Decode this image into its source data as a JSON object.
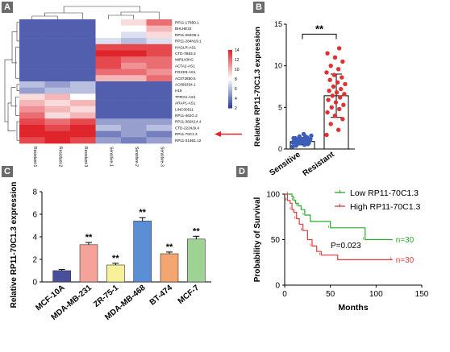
{
  "panels": {
    "a": "A",
    "b": "B",
    "c": "C",
    "d": "D"
  },
  "chart_data": [
    {
      "type": "heatmap",
      "panel": "A",
      "columns": [
        "Resistant-1",
        "Resistant-2",
        "Resistant-3",
        "Sensitive-1",
        "Sensitive-2",
        "Sensitive-3"
      ],
      "rows": [
        "RP11-175B0.1",
        "BHLHE22",
        "RP11-284O6.1",
        "RP11-284N19.1",
        "HAGLR-AS1",
        "CTD-7B53.3",
        "MIR143HG",
        "ACTA2-AS1",
        "FOXD3-AS1",
        "AC073850.5",
        "AC099334.1",
        "H19",
        "TPRG1-AS1",
        "ARAP1-AS1",
        "LINC00511",
        "RP11-462G.2",
        "RP11-382K14.4",
        "CTD-2224J9.4",
        "RP11-70C1.3",
        "RP11-314B1.12"
      ],
      "colorbar": {
        "ticks": [
          14,
          12,
          10,
          8,
          6,
          4,
          2
        ],
        "low": "#2e3f9e",
        "mid": "#ffffff",
        "high": "#e0242b"
      },
      "highlighted_row": "RP11-70C1.3",
      "values": [
        [
          3,
          3,
          3,
          8,
          9,
          12
        ],
        [
          3,
          3,
          3,
          8,
          8,
          10
        ],
        [
          3,
          3,
          3,
          8,
          7,
          9
        ],
        [
          3,
          3,
          3,
          7,
          6,
          7
        ],
        [
          3,
          3,
          3,
          13,
          13,
          13
        ],
        [
          3,
          3,
          3,
          14,
          14,
          13
        ],
        [
          3,
          3,
          3,
          13,
          12,
          12
        ],
        [
          3,
          3,
          3,
          13,
          11,
          12
        ],
        [
          3,
          3,
          3,
          12,
          12,
          11
        ],
        [
          3,
          3,
          3,
          10,
          10,
          12
        ],
        [
          6,
          5,
          6,
          3,
          3,
          3
        ],
        [
          5,
          6,
          6,
          3,
          3,
          3
        ],
        [
          9,
          10,
          8,
          3,
          3,
          3
        ],
        [
          10,
          9,
          10,
          3,
          3,
          3
        ],
        [
          11,
          10,
          9,
          3,
          3,
          3
        ],
        [
          12,
          9,
          10,
          3,
          3,
          3
        ],
        [
          13,
          12,
          13,
          5,
          5,
          5
        ],
        [
          14,
          13,
          14,
          6,
          5,
          6
        ],
        [
          14,
          14,
          14,
          4,
          5,
          4
        ],
        [
          13,
          14,
          13,
          5,
          4,
          5
        ]
      ]
    },
    {
      "type": "bar",
      "panel": "B",
      "categories": [
        "Sensitive",
        "Resistant"
      ],
      "values": [
        0.9,
        6.4
      ],
      "errors": [
        0.4,
        2.6
      ],
      "points": {
        "Sensitive": [
          0.3,
          0.5,
          0.6,
          0.7,
          0.8,
          0.8,
          0.9,
          0.9,
          1.0,
          1.0,
          1.0,
          1.1,
          1.1,
          1.2,
          1.2,
          1.3,
          1.4,
          1.5,
          1.6,
          1.8,
          0.4,
          0.6,
          0.7,
          0.8,
          0.9,
          1.0,
          1.1,
          1.2,
          1.3,
          1.5
        ],
        "Resistant": [
          1.7,
          2.3,
          3.0,
          3.6,
          4.0,
          4.4,
          4.8,
          5.0,
          5.3,
          5.6,
          5.9,
          6.2,
          6.4,
          6.6,
          6.8,
          7.0,
          7.2,
          7.5,
          7.8,
          8.0,
          8.3,
          8.6,
          8.9,
          9.2,
          9.6,
          10.0,
          10.5,
          11.0,
          11.5,
          12.1
        ]
      },
      "significance": "**",
      "ylabel": "Relative RP11-70C1.3 expression",
      "ylim": [
        0,
        15
      ],
      "yticks": [
        0,
        5,
        10,
        15
      ],
      "colors": {
        "Sensitive": "#3d5db8",
        "Resistant": "#e03030"
      }
    },
    {
      "type": "bar",
      "panel": "C",
      "categories": [
        "MCF-10A",
        "MDA-MB-231",
        "ZR-75-1",
        "MDA-MB-468",
        "BT-474",
        "MCF-7"
      ],
      "values": [
        1.0,
        3.3,
        1.5,
        5.4,
        2.5,
        3.8
      ],
      "errors": [
        0.1,
        0.2,
        0.15,
        0.3,
        0.15,
        0.25
      ],
      "significance": [
        "",
        "**",
        "**",
        "**",
        "**",
        "**"
      ],
      "colors": [
        "#4a4f9c",
        "#f4a29a",
        "#f7f29a",
        "#5a8fd6",
        "#f4a672",
        "#9fd393"
      ],
      "ylabel": "Relative RP11-70C1.3 expression",
      "ylim": [
        0,
        8
      ],
      "yticks": [
        0,
        2,
        4,
        6,
        8
      ]
    },
    {
      "type": "line",
      "panel": "D",
      "xlabel": "Months",
      "ylabel": "Probability of Survival",
      "xlim": [
        0,
        150
      ],
      "ylim": [
        0,
        100
      ],
      "xticks": [
        0,
        50,
        100,
        150
      ],
      "yticks": [
        0,
        50,
        100
      ],
      "annotation": "P=0.023",
      "series": [
        {
          "name": "Low RP11-70C1.3",
          "color": "#2ea82e",
          "n_label": "n=30",
          "x": [
            0,
            5,
            8,
            10,
            12,
            15,
            18,
            22,
            28,
            50,
            85,
            88,
            118
          ],
          "y": [
            100,
            100,
            97,
            93,
            90,
            87,
            83,
            77,
            70,
            63,
            63,
            50,
            50
          ]
        },
        {
          "name": "High RP11-70C1.3",
          "color": "#e33b3b",
          "n_label": "n=30",
          "x": [
            0,
            3,
            6,
            8,
            10,
            13,
            16,
            20,
            25,
            30,
            35,
            40,
            58,
            118
          ],
          "y": [
            100,
            93,
            90,
            83,
            80,
            73,
            67,
            60,
            50,
            43,
            37,
            33,
            28,
            28
          ]
        }
      ]
    }
  ]
}
